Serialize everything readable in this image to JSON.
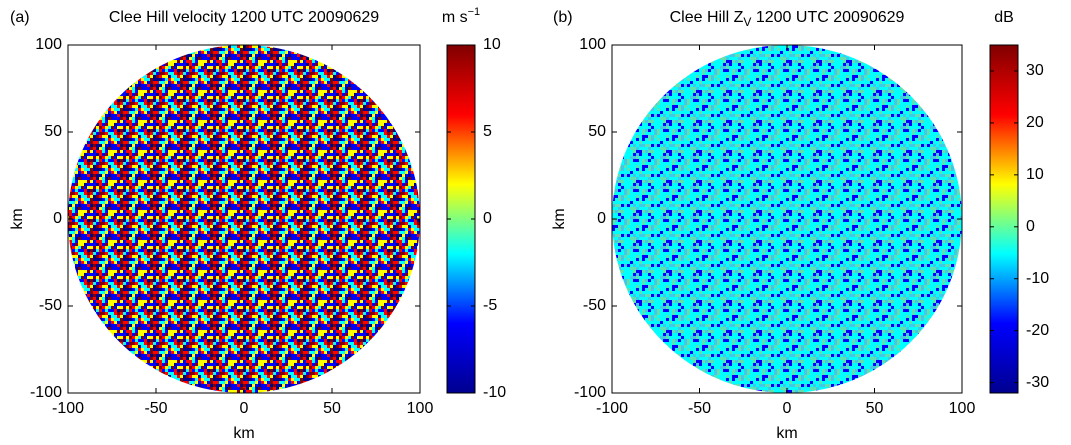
{
  "chart_data": [
    {
      "type": "radar-ppi",
      "panel_label": "(a)",
      "title": {
        "text": "Clee Hill velocity 1200 UTC 20090629"
      },
      "xlabel": "km",
      "ylabel": "km",
      "xlim": [
        -100,
        100
      ],
      "ylim": [
        -100,
        100
      ],
      "xticks": [
        -100,
        -50,
        0,
        50,
        100
      ],
      "yticks": [
        -100,
        -50,
        0,
        50,
        100
      ],
      "colorbar": {
        "label": {
          "text": "m s",
          "sup": "−1"
        },
        "lim": [
          -10,
          10
        ],
        "ticks": [
          -10,
          -5,
          0,
          5,
          10
        ],
        "colormap": [
          "#00008f",
          "#0000ff",
          "#00ffff",
          "#ffff00",
          "#ff0000",
          "#800000"
        ]
      }
    },
    {
      "type": "radar-ppi",
      "panel_label": "(b)",
      "title": {
        "text": "Clee Hill Z",
        "sub": "V",
        "rest": " 1200 UTC 20090629"
      },
      "xlabel": "km",
      "ylabel": "km",
      "xlim": [
        -100,
        100
      ],
      "ylim": [
        -100,
        100
      ],
      "xticks": [
        -100,
        -50,
        0,
        50,
        100
      ],
      "yticks": [
        -100,
        -50,
        0,
        50,
        100
      ],
      "colorbar": {
        "label": {
          "text": "dB"
        },
        "lim": [
          -32,
          35
        ],
        "ticks": [
          -30,
          -20,
          -10,
          0,
          10,
          20,
          30
        ],
        "colormap": [
          "#00008f",
          "#0000ff",
          "#00ffff",
          "#ffff00",
          "#ff0000",
          "#800000"
        ]
      }
    }
  ]
}
